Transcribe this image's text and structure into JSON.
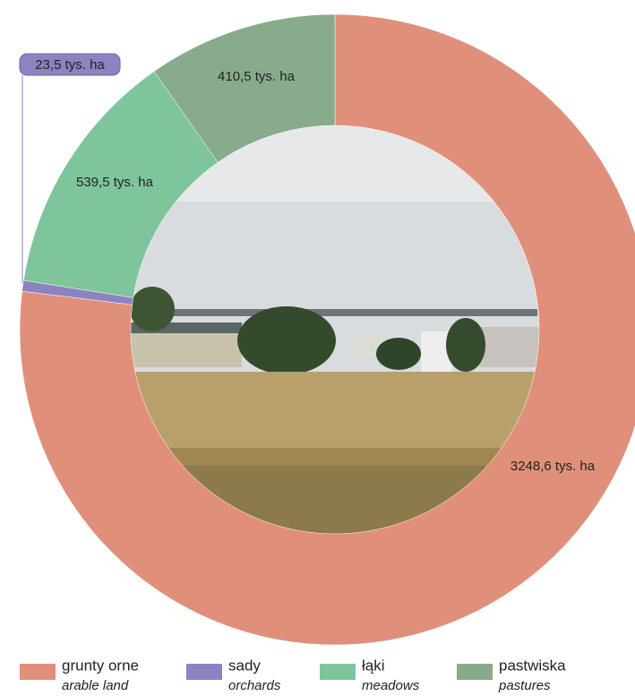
{
  "chart_data": {
    "type": "donut",
    "categories": [
      "grunty orne",
      "sady",
      "łąki",
      "pastwiska"
    ],
    "categories_en": [
      "arable land",
      "orchards",
      "meadows",
      "pastures"
    ],
    "values": [
      3248.6,
      23.5,
      539.5,
      410.5
    ],
    "value_labels": [
      "3248,6 tys. ha",
      "23,5 tys. ha",
      "539,5 tys. ha",
      "410,5 tys. ha"
    ],
    "colors": [
      "#e0907a",
      "#8c84c0",
      "#7ec59b",
      "#87ab8b"
    ]
  }
}
